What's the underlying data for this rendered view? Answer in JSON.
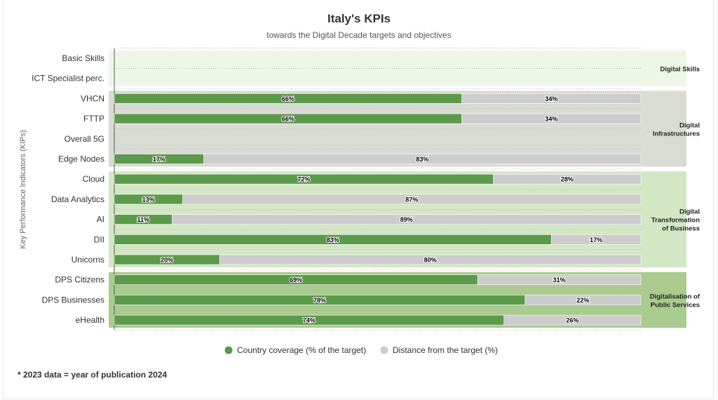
{
  "chart_data": {
    "type": "bar",
    "orientation": "horizontal",
    "stacked": true,
    "title": "Italy's KPIs",
    "subtitle": "towards the Digital Decade targets and objectives",
    "ylabel": "Key Performance Indicators (KIPs)",
    "categories": [
      "Basic Skills",
      "ICT Specialist perc.",
      "VHCN",
      "FTTP",
      "Overall 5G",
      "Edge Nodes",
      "Cloud",
      "Data Analytics",
      "AI",
      "DII",
      "Unicorns",
      "DPS Citizens",
      "DPS Businesses",
      "eHealth"
    ],
    "series": [
      {
        "name": "Country coverage (% of the target)",
        "color": "#5b9a4b",
        "values": [
          null,
          null,
          66,
          66,
          null,
          17,
          72,
          13,
          11,
          83,
          20,
          69,
          78,
          74
        ]
      },
      {
        "name": "Distance from the target (%)",
        "color": "#cccccc",
        "values": [
          null,
          null,
          34,
          34,
          null,
          83,
          28,
          87,
          89,
          17,
          80,
          31,
          22,
          26
        ]
      }
    ],
    "xlim": [
      0,
      100
    ],
    "groups": [
      {
        "label": [
          "Digital Skills"
        ],
        "from": 0,
        "to": 1,
        "color": "#eef6e8"
      },
      {
        "label": [
          "Digital",
          "Infrastructures"
        ],
        "from": 2,
        "to": 5,
        "color": "#d9dcd4"
      },
      {
        "label": [
          "Digital",
          "Transformation",
          "of Business"
        ],
        "from": 6,
        "to": 10,
        "color": "#d3e7c4"
      },
      {
        "label": [
          "Digitalisation of",
          "Public Services"
        ],
        "from": 11,
        "to": 13,
        "color": "#a9cc8e"
      }
    ],
    "legend_position": "bottom",
    "footnote": "* 2023 data = year of publication 2024"
  }
}
